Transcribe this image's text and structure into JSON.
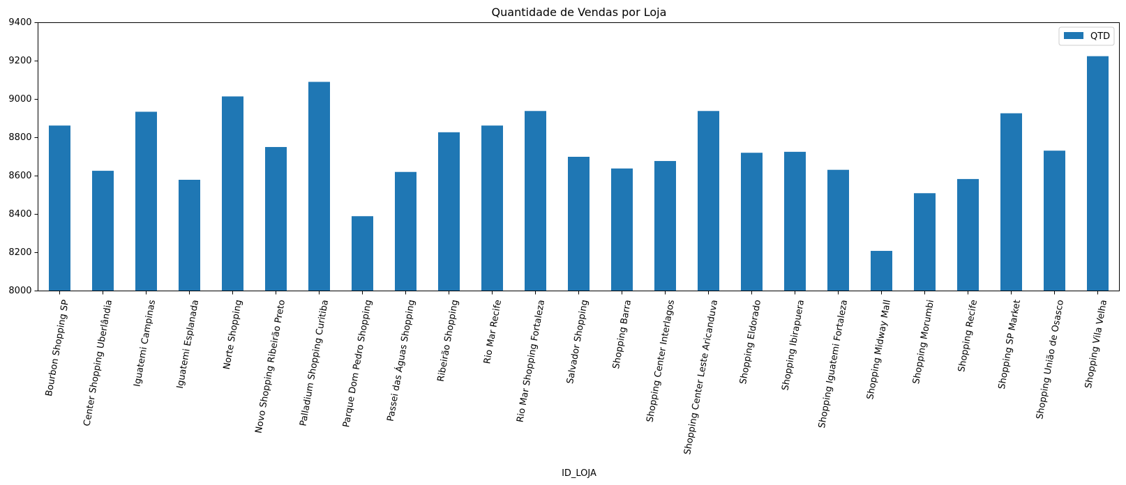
{
  "chart_data": {
    "type": "bar",
    "title": "Quantidade de Vendas por Loja",
    "xlabel": "ID_LOJA",
    "ylabel": "",
    "ylim": [
      8000,
      9400
    ],
    "yticks": [
      8000,
      8200,
      8400,
      8600,
      8800,
      9000,
      9200,
      9400
    ],
    "grid": false,
    "legend_position": "top-right",
    "categories": [
      "Bourbon Shopping SP",
      "Center Shopping Uberlândia",
      "Iguatemi Campinas",
      "Iguatemi Esplanada",
      "Norte Shopping",
      "Novo Shopping Ribeirão Preto",
      "Palladium Shopping Curitiba",
      "Parque Dom Pedro Shopping",
      "Passei das Águas Shopping",
      "Ribeirão Shopping",
      "Rio Mar Recife",
      "Rio Mar Shopping Fortaleza",
      "Salvador Shopping",
      "Shopping Barra",
      "Shopping Center Interlagos",
      "Shopping Center Leste Aricanduva",
      "Shopping Eldorado",
      "Shopping Ibirapuera",
      "Shopping Iguatemi Fortaleza",
      "Shopping Midway Mall",
      "Shopping Morumbi",
      "Shopping Recife",
      "Shopping SP Market",
      "Shopping União de Osasco",
      "Shopping Vila Velha"
    ],
    "series": [
      {
        "name": "QTD",
        "color": "#1f77b4",
        "values": [
          8863,
          8627,
          8935,
          8580,
          9015,
          8751,
          9091,
          8390,
          8621,
          8828,
          8863,
          8939,
          8700,
          8639,
          8678,
          8939,
          8721,
          8726,
          8632,
          8209,
          8510,
          8584,
          8927,
          8732,
          9225
        ]
      }
    ]
  }
}
